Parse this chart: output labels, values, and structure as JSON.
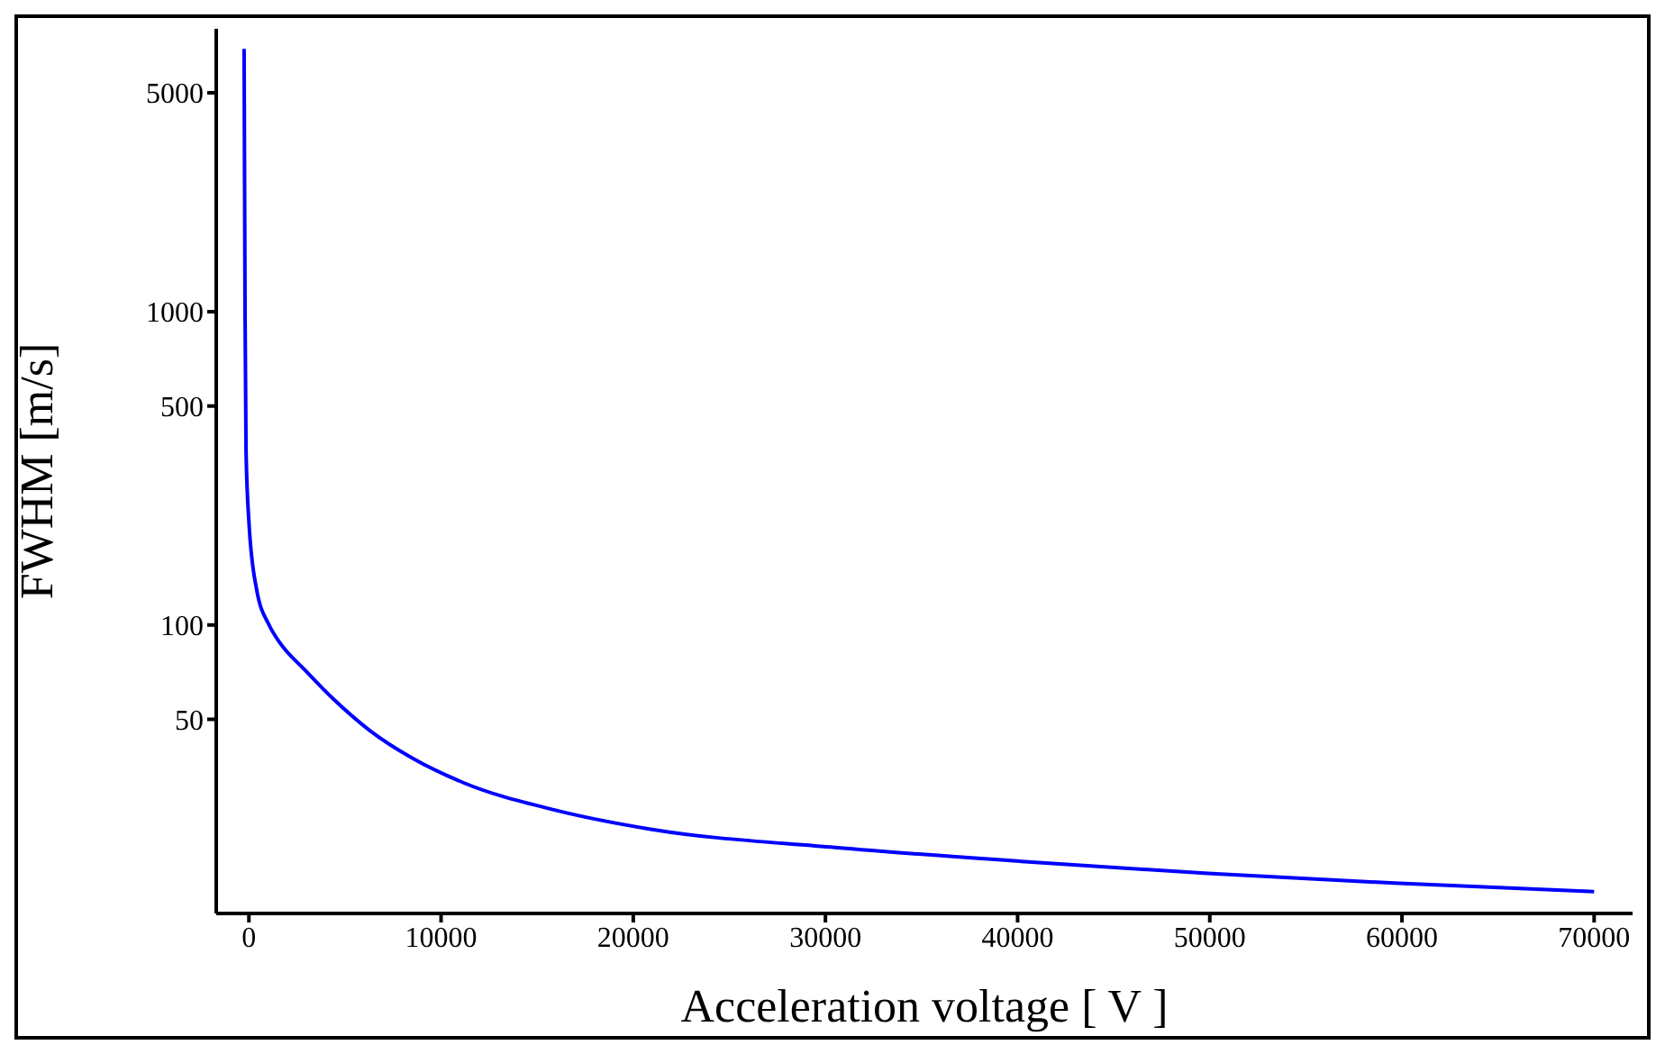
{
  "chart_data": {
    "type": "line",
    "xlabel": "Acceleration voltage [ V ]",
    "ylabel": "FWHM [m/s]",
    "x": [
      -250,
      -200,
      -150,
      0,
      400,
      1050,
      1600,
      2900,
      4400,
      6300,
      8500,
      11150,
      16000,
      20900,
      30500,
      40200,
      49900,
      59600,
      70000
    ],
    "series": [
      {
        "color": "#0000ff",
        "values": [
          6900,
          1000,
          363,
          214,
          130,
          100,
          88,
          72,
          58,
          46,
          37.6,
          31.4,
          25.6,
          22.3,
          19.5,
          17.6,
          16.1,
          15.0,
          14.1
        ]
      }
    ],
    "xlim": [
      -1700,
      72000
    ],
    "xticks": [
      0,
      10000,
      20000,
      30000,
      40000,
      50000,
      60000,
      70000
    ],
    "ylim": [
      12,
      8000
    ],
    "yticks": [
      50,
      100,
      500,
      1000,
      5000
    ],
    "log": "y",
    "marker": "none",
    "line_style": "solid"
  }
}
